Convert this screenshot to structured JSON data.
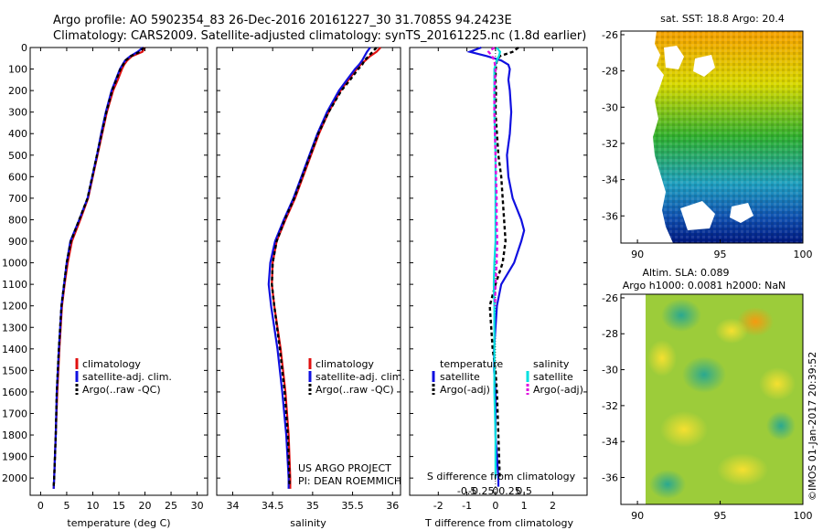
{
  "header": {
    "line1": "Argo profile: AO 5902354_83 26-Dec-2016 20161227_30 31.7085S 94.2423E",
    "line2": "Climatology: CARS2009. Satellite-adjusted climatology: synTS_20161225.nc (1.8d earlier)"
  },
  "colors": {
    "climatology": "#e01010",
    "satellite": "#1010e0",
    "argo": "#000000",
    "sal_satellite": "#00e0e0",
    "sal_argo": "#e010e0"
  },
  "chart_data": [
    {
      "type": "line",
      "panel": "temperature",
      "xlabel": "temperature (deg C)",
      "ylabel": "depth",
      "xlim": [
        -2,
        32
      ],
      "ylim": [
        2080,
        0
      ],
      "xticks": [
        "0",
        "5",
        "10",
        "15",
        "20",
        "25",
        "30"
      ],
      "xtick_values": [
        0,
        5,
        10,
        15,
        20,
        25,
        30
      ],
      "yticks": [
        "0",
        "100",
        "200",
        "300",
        "400",
        "500",
        "600",
        "700",
        "800",
        "900",
        "1000",
        "1100",
        "1200",
        "1300",
        "1400",
        "1500",
        "1600",
        "1700",
        "1800",
        "1900",
        "2000"
      ],
      "ytick_values": [
        0,
        100,
        200,
        300,
        400,
        500,
        600,
        700,
        800,
        900,
        1000,
        1100,
        1200,
        1300,
        1400,
        1500,
        1600,
        1700,
        1800,
        1900,
        2000
      ],
      "legend": [
        "climatology",
        "satellite-adj. clim.",
        "Argo(..raw -QC)"
      ],
      "series": [
        {
          "name": "climatology",
          "color_key": "climatology",
          "depth": [
            0,
            20,
            40,
            60,
            80,
            100,
            150,
            200,
            300,
            400,
            500,
            600,
            700,
            800,
            900,
            1000,
            1100,
            1200,
            1400,
            1600,
            1800,
            2000,
            2050
          ],
          "values": [
            20,
            19.5,
            17.5,
            16.6,
            16.0,
            15.6,
            14.8,
            13.9,
            12.7,
            11.8,
            10.9,
            10.0,
            9.1,
            7.6,
            6.0,
            5.2,
            4.6,
            4.1,
            3.6,
            3.2,
            2.9,
            2.6,
            2.5
          ]
        },
        {
          "name": "satellite-adj. clim.",
          "color_key": "satellite",
          "depth": [
            0,
            20,
            40,
            60,
            80,
            100,
            150,
            200,
            300,
            400,
            500,
            600,
            700,
            800,
            900,
            1000,
            1100,
            1200,
            1400,
            1600,
            1800,
            2000,
            2050
          ],
          "values": [
            19.6,
            18.6,
            17.2,
            16.2,
            15.7,
            15.2,
            14.4,
            13.6,
            12.5,
            11.6,
            10.8,
            9.9,
            9.0,
            7.4,
            5.7,
            5.0,
            4.5,
            4.0,
            3.5,
            3.1,
            2.9,
            2.6,
            2.5
          ]
        },
        {
          "name": "Argo(..raw -QC)",
          "color_key": "argo",
          "depth": [
            0,
            20,
            40,
            60,
            80,
            100,
            150,
            200,
            300,
            400,
            500,
            600,
            700,
            800,
            900,
            1000,
            1100,
            1200,
            1400,
            1600,
            1800,
            2000,
            2040
          ],
          "values": [
            19.8,
            19.0,
            17.3,
            16.3,
            15.8,
            15.3,
            14.5,
            13.7,
            12.6,
            11.7,
            10.8,
            9.9,
            9.0,
            7.4,
            5.8,
            5.0,
            4.5,
            4.0,
            3.5,
            3.1,
            2.9,
            2.6,
            2.5
          ]
        }
      ]
    },
    {
      "type": "line",
      "panel": "salinity",
      "xlabel": "salinity",
      "xlim": [
        33.8,
        36.1
      ],
      "ylim": [
        2080,
        0
      ],
      "xticks": [
        "34",
        "34.5",
        "35",
        "35.5",
        "36"
      ],
      "xtick_values": [
        34,
        34.5,
        35,
        35.5,
        36
      ],
      "legend": [
        "climatology",
        "satellite-adj. clim.",
        "Argo(..raw -QC)"
      ],
      "annotation": [
        "US ARGO PROJECT",
        "PI: DEAN ROEMMICH"
      ],
      "series": [
        {
          "name": "climatology",
          "color_key": "climatology",
          "depth": [
            0,
            20,
            40,
            60,
            80,
            100,
            150,
            200,
            300,
            400,
            500,
            600,
            700,
            800,
            900,
            1000,
            1100,
            1200,
            1400,
            1600,
            1800,
            2000,
            2050
          ],
          "values": [
            35.85,
            35.8,
            35.72,
            35.66,
            35.6,
            35.55,
            35.45,
            35.35,
            35.2,
            35.08,
            34.98,
            34.88,
            34.78,
            34.66,
            34.55,
            34.5,
            34.49,
            34.52,
            34.6,
            34.66,
            34.7,
            34.72,
            34.72
          ]
        },
        {
          "name": "satellite-adj. clim.",
          "color_key": "satellite",
          "depth": [
            0,
            20,
            40,
            60,
            80,
            100,
            150,
            200,
            300,
            400,
            500,
            600,
            700,
            800,
            900,
            1000,
            1100,
            1200,
            1400,
            1600,
            1800,
            2000,
            2050
          ],
          "values": [
            35.72,
            35.68,
            35.65,
            35.62,
            35.58,
            35.53,
            35.43,
            35.33,
            35.18,
            35.06,
            34.96,
            34.86,
            34.76,
            34.64,
            34.53,
            34.47,
            34.45,
            34.48,
            34.56,
            34.62,
            34.67,
            34.7,
            34.7
          ]
        },
        {
          "name": "Argo(..raw -QC)",
          "color_key": "argo",
          "depth": [
            0,
            20,
            40,
            60,
            80,
            100,
            150,
            200,
            300,
            400,
            500,
            600,
            700,
            800,
            900,
            1000,
            1100,
            1200,
            1400,
            1600,
            1800,
            2000,
            2040
          ],
          "values": [
            35.8,
            35.75,
            35.7,
            35.65,
            35.62,
            35.57,
            35.47,
            35.36,
            35.2,
            35.07,
            34.97,
            34.87,
            34.77,
            34.65,
            34.55,
            34.5,
            34.49,
            34.52,
            34.59,
            34.65,
            34.69,
            34.71,
            34.71
          ]
        }
      ]
    },
    {
      "type": "line",
      "panel": "difference",
      "xlabel": "T difference from climatology",
      "top_label": "S difference from climatology",
      "xlim": [
        -3,
        3.2
      ],
      "ylim": [
        2080,
        0
      ],
      "xticks": [
        "-2",
        "-1",
        "0",
        "1",
        "2"
      ],
      "xtick_values": [
        -2,
        -1,
        0,
        1,
        2
      ],
      "sticks": [
        "-0.5",
        "-0.25",
        "0",
        "0.25",
        "0.5"
      ],
      "stick_values": [
        -0.5,
        -0.25,
        0,
        0.25,
        0.5
      ],
      "legend_titles": [
        "temperature",
        "salinity"
      ],
      "legend": [
        "satellite",
        "Argo(-adj)",
        "satellite",
        "Argo(-adj)"
      ],
      "series": [
        {
          "name": "temperature satellite",
          "color_key": "satellite",
          "depth": [
            0,
            20,
            40,
            60,
            80,
            100,
            150,
            200,
            300,
            400,
            500,
            600,
            700,
            800,
            850,
            900,
            1000,
            1100,
            1200,
            1300,
            1400,
            1500,
            1600,
            1800,
            2000,
            2040
          ],
          "values": [
            -0.5,
            -0.9,
            -0.3,
            0.2,
            0.45,
            0.5,
            0.45,
            0.5,
            0.55,
            0.5,
            0.4,
            0.45,
            0.6,
            0.9,
            1.0,
            0.9,
            0.65,
            0.2,
            0.05,
            0,
            -0.05,
            -0.05,
            0,
            0,
            0.1,
            0.1
          ]
        },
        {
          "name": "temperature Argo(-adj)",
          "color_key": "argo",
          "depth": [
            0,
            20,
            40,
            60,
            80,
            100,
            150,
            200,
            300,
            400,
            500,
            600,
            700,
            800,
            900,
            1000,
            1100,
            1200,
            1300,
            1400,
            1500,
            1600,
            1800,
            2000
          ],
          "values": [
            0.8,
            0.6,
            0.15,
            0.05,
            0.02,
            0.01,
            0,
            0.02,
            0,
            0.05,
            0.1,
            0.2,
            0.25,
            0.3,
            0.35,
            0.25,
            0.0,
            -0.2,
            -0.15,
            -0.1,
            0.0,
            0.05,
            0.1,
            0.15
          ]
        },
        {
          "name": "salinity satellite",
          "color_key": "sal_satellite",
          "depth": [
            0,
            20,
            40,
            60,
            100,
            200,
            300,
            500,
            700,
            900,
            1000,
            1100,
            1200,
            1400,
            1600,
            1800,
            2000
          ],
          "values": [
            0.02,
            0.08,
            0.06,
            0.02,
            -0.02,
            -0.02,
            -0.02,
            0,
            0,
            0,
            -0.02,
            -0.03,
            -0.02,
            -0.02,
            -0.02,
            0,
            0
          ]
        },
        {
          "name": "salinity Argo(-adj)",
          "color_key": "sal_argo",
          "depth": [
            0,
            20,
            40,
            60,
            100,
            150,
            200,
            300,
            400,
            500,
            600,
            700,
            800,
            900,
            1000,
            1100,
            1200
          ],
          "values": [
            -0.02,
            -0.12,
            -0.06,
            -0.02,
            0.0,
            -0.01,
            -0.02,
            -0.02,
            -0.01,
            0.0,
            0.01,
            0.02,
            0.02,
            0.03,
            0.02,
            0.0,
            -0.01
          ]
        }
      ]
    },
    {
      "type": "heatmap",
      "panel": "sst-map",
      "title": "sat. SST: 18.8 Argo: 20.4",
      "xticks": [
        "90",
        "95",
        "100"
      ],
      "xtick_values": [
        90,
        95,
        100
      ],
      "yticks": [
        "-26",
        "-28",
        "-30",
        "-32",
        "-34",
        "-36"
      ],
      "ytick_values": [
        -26,
        -28,
        -30,
        -32,
        -34,
        -36
      ],
      "xlim": [
        89,
        100
      ],
      "ylim": [
        -37.5,
        -25.8
      ]
    },
    {
      "type": "heatmap",
      "panel": "sla-map",
      "title_lines": [
        "Altim. SLA: 0.089",
        "Argo h1000: 0.0081 h2000: NaN"
      ],
      "xticks": [
        "90",
        "95",
        "100"
      ],
      "xtick_values": [
        90,
        95,
        100
      ],
      "yticks": [
        "-26",
        "-28",
        "-30",
        "-32",
        "-34",
        "-36"
      ],
      "ytick_values": [
        -26,
        -28,
        -30,
        -32,
        -34,
        -36
      ],
      "xlim": [
        89,
        100
      ],
      "ylim": [
        -37.5,
        -25.8
      ]
    }
  ],
  "footer": {
    "credit": "©IMOS 01-Jan-2017 20:39:52"
  }
}
